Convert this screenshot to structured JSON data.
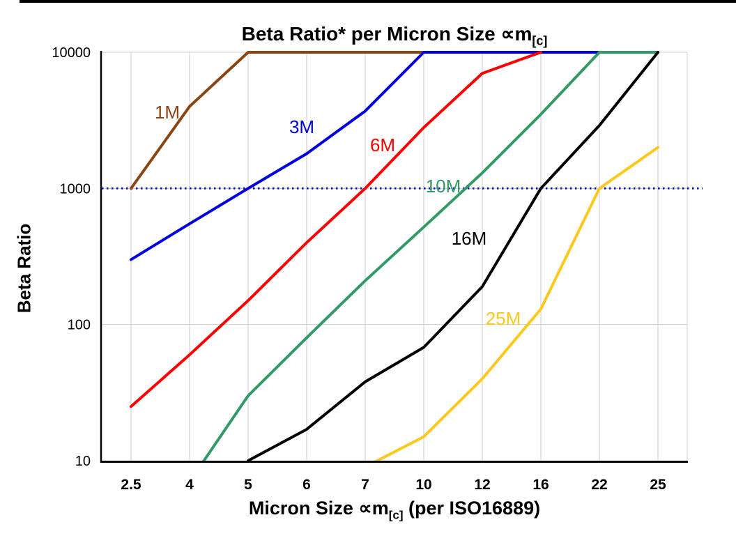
{
  "chart": {
    "title_main": "Beta Ratio* per Micron Size ∝m",
    "title_sub": "[c]",
    "ylabel": "Beta Ratio",
    "xlabel_pre": "Micron Size ∝m",
    "xlabel_sub": "[c]",
    "xlabel_post": " (per ISO16889)"
  },
  "chart_data": {
    "type": "line",
    "title": "Beta Ratio* per Micron Size ∝m[c]",
    "xlabel": "Micron Size ∝m[c] (per ISO16889)",
    "ylabel": "Beta Ratio",
    "y_scale": "log",
    "ylim": [
      10,
      10000
    ],
    "y_ticks": [
      10,
      100,
      1000,
      10000
    ],
    "grid": true,
    "x_categories": [
      "2.5",
      "4",
      "5",
      "6",
      "7",
      "10",
      "12",
      "16",
      "22",
      "25"
    ],
    "reference_line": {
      "y": 1000,
      "style": "dotted",
      "color": "#0000CC"
    },
    "series": [
      {
        "name": "1M",
        "color": "#8B4513",
        "values": [
          1000,
          4000,
          10000,
          10000,
          10000,
          10000,
          10000,
          10000,
          10000,
          10000
        ]
      },
      {
        "name": "3M",
        "color": "#0000DD",
        "values": [
          300,
          550,
          1000,
          1800,
          3700,
          10000,
          10000,
          10000,
          10000,
          10000
        ]
      },
      {
        "name": "6M",
        "color": "#FF0000",
        "values": [
          25,
          60,
          150,
          400,
          1000,
          2800,
          7000,
          10000,
          null,
          null
        ]
      },
      {
        "name": "10M",
        "color": "#339966",
        "values": [
          null,
          7,
          30,
          80,
          210,
          520,
          1300,
          3500,
          10000,
          10000
        ]
      },
      {
        "name": "16M",
        "color": "#000000",
        "values": [
          null,
          null,
          10,
          17,
          38,
          68,
          190,
          1000,
          2900,
          10000
        ]
      },
      {
        "name": "25M",
        "color": "#FFC81E",
        "values": [
          null,
          null,
          null,
          null,
          9,
          15,
          40,
          130,
          1000,
          2000
        ]
      }
    ],
    "annotations": [
      {
        "text": "1M",
        "color": "#8B4513"
      },
      {
        "text": "3M",
        "color": "#0000DD"
      },
      {
        "text": "6M",
        "color": "#FF0000"
      },
      {
        "text": "10M",
        "color": "#339966"
      },
      {
        "text": "16M",
        "color": "#000000"
      },
      {
        "text": "25M",
        "color": "#FFC81E"
      }
    ]
  }
}
